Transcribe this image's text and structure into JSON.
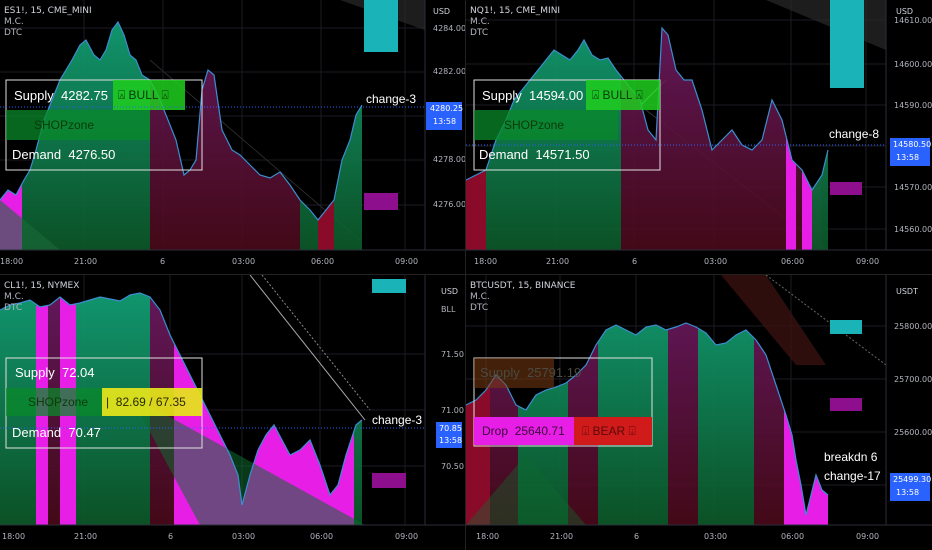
{
  "panels": [
    {
      "id": "tl",
      "symbol": "ES1!, 15, CME_MINI",
      "lines": [
        "M.C.",
        "DTC"
      ],
      "currency": "USD",
      "price_ticks": [
        "4284.00",
        "4282.00",
        "4280.00",
        "4278.00",
        "4276.00"
      ],
      "time_ticks": [
        "18:00",
        "21:00",
        "6",
        "03:00",
        "06:00",
        "09:00"
      ],
      "last_price": "4280.25",
      "countdown": "13:58",
      "box": {
        "row1_label": "Supply",
        "row1_value": "4282.75",
        "zone": "SHOPzone",
        "row3_label": "Demand",
        "row3_value": "4276.50",
        "badge": "⍓ BULL ⍓"
      },
      "annotation": [
        "change-3"
      ]
    },
    {
      "id": "tr",
      "symbol": "NQ1!, 15, CME_MINI",
      "lines": [
        "M.C.",
        "DTC"
      ],
      "currency": "USD",
      "price_ticks": [
        "14610.00",
        "14600.00",
        "14590.00",
        "14580.00",
        "14570.00",
        "14560.00"
      ],
      "time_ticks": [
        "18:00",
        "21:00",
        "6",
        "03:00",
        "06:00",
        "09:00"
      ],
      "last_price": "14580.50",
      "countdown": "13:58",
      "box": {
        "row1_label": "Supply",
        "row1_value": "14594.00",
        "zone": "SHOPzone",
        "row3_label": "Demand",
        "row3_value": "14571.50",
        "badge": "⍓ BULL ⍓"
      },
      "annotation": [
        "change-8"
      ]
    },
    {
      "id": "bl",
      "symbol": "CL1!, 15, NYMEX",
      "lines": [
        "M.C.",
        "DTC"
      ],
      "currency": "USD",
      "currency2": "BLL",
      "price_ticks": [
        "71.50",
        "71.00",
        "70.50"
      ],
      "time_ticks": [
        "18:00",
        "21:00",
        "6",
        "03:00",
        "06:00",
        "09:00"
      ],
      "last_price": "70.85",
      "countdown": "13:58",
      "box": {
        "row1_label": "Supply",
        "row1_value": "72.04",
        "zone": "SHOPzone",
        "row3_label": "Demand",
        "row3_value": "70.47",
        "badge": "|  82.69 / 67.35"
      },
      "annotation": [
        "change-3"
      ]
    },
    {
      "id": "br",
      "symbol": "BTCUSDT, 15, BINANCE",
      "lines": [
        "M.C.",
        "DTC"
      ],
      "currency": "USDT",
      "price_ticks": [
        "25800.00",
        "25700.00",
        "25600.00"
      ],
      "time_ticks": [
        "18:00",
        "21:00",
        "6",
        "03:00",
        "06:00",
        "09:00"
      ],
      "last_price": "25499.30",
      "countdown": "13:58",
      "box": {
        "row1_label": "Supply",
        "row1_value": "25791.19",
        "row3_label": "Drop",
        "row3_value": "25640.71",
        "badge": "⍗ BEAR ⍗"
      },
      "annotation": [
        "breakdn 6",
        "change-17"
      ]
    }
  ],
  "colors": {
    "bull_fill": "#0e7a3c",
    "bear_fill": "#7a1030",
    "magenta": "#e61ee6",
    "cyan": "#19b3b8",
    "purple": "#8e0f8e",
    "price_tag": "#2962ff",
    "bull_badge": "#1fcf1f",
    "bear_badge": "#d11a1a",
    "yellow_badge": "#e6e61a"
  }
}
